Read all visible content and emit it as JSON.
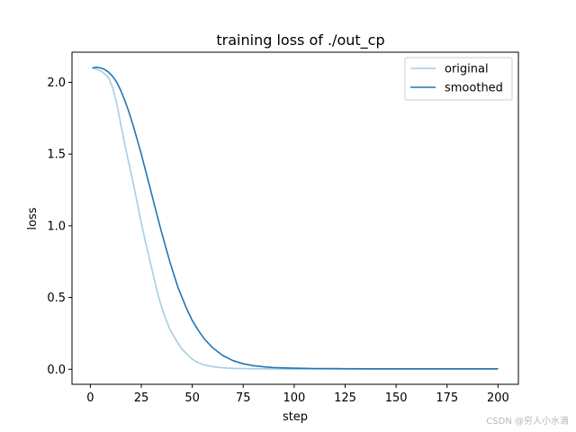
{
  "chart_data": {
    "type": "line",
    "title": "training loss of ./out_cp",
    "xlabel": "step",
    "ylabel": "loss",
    "xlim": [
      -9,
      210
    ],
    "ylim": [
      -0.105,
      2.21
    ],
    "xticks": [
      0,
      25,
      50,
      75,
      100,
      125,
      150,
      175,
      200
    ],
    "yticks": [
      0.0,
      0.5,
      1.0,
      1.5,
      2.0
    ],
    "ytick_labels": [
      "0.0",
      "0.5",
      "1.0",
      "1.5",
      "2.0"
    ],
    "grid": false,
    "legend_position": "top-right",
    "series": [
      {
        "name": "original",
        "color": "#a6cee3",
        "x": [
          1,
          3,
          5,
          7,
          9,
          11,
          13,
          15,
          17,
          19,
          21,
          23,
          25,
          27,
          29,
          31,
          33,
          35,
          37,
          39,
          41,
          43,
          45,
          47,
          50,
          53,
          56,
          60,
          65,
          70,
          75,
          80,
          90,
          100,
          120,
          140,
          160,
          180,
          200
        ],
        "y": [
          2.1,
          2.09,
          2.08,
          2.06,
          2.03,
          1.96,
          1.85,
          1.7,
          1.56,
          1.43,
          1.3,
          1.16,
          1.02,
          0.89,
          0.77,
          0.65,
          0.53,
          0.43,
          0.35,
          0.28,
          0.23,
          0.18,
          0.14,
          0.11,
          0.07,
          0.045,
          0.03,
          0.018,
          0.01,
          0.006,
          0.004,
          0.003,
          0.002,
          0.001,
          0.001,
          0.001,
          0.001,
          0.001,
          0.001
        ]
      },
      {
        "name": "smoothed",
        "color": "#1f77b4",
        "x": [
          1,
          3,
          5,
          7,
          9,
          11,
          13,
          15,
          17,
          19,
          21,
          23,
          25,
          27,
          29,
          31,
          33,
          35,
          37,
          39,
          41,
          43,
          45,
          47,
          50,
          53,
          56,
          60,
          65,
          70,
          75,
          80,
          85,
          90,
          95,
          100,
          110,
          120,
          140,
          160,
          180,
          200
        ],
        "y": [
          2.1,
          2.105,
          2.1,
          2.09,
          2.07,
          2.04,
          2.0,
          1.94,
          1.87,
          1.79,
          1.7,
          1.6,
          1.5,
          1.39,
          1.28,
          1.17,
          1.06,
          0.95,
          0.85,
          0.75,
          0.66,
          0.57,
          0.5,
          0.43,
          0.34,
          0.27,
          0.21,
          0.15,
          0.095,
          0.06,
          0.038,
          0.025,
          0.017,
          0.012,
          0.009,
          0.007,
          0.005,
          0.004,
          0.003,
          0.003,
          0.003,
          0.003
        ]
      }
    ]
  },
  "watermark": "CSDN @穷人小水滴"
}
